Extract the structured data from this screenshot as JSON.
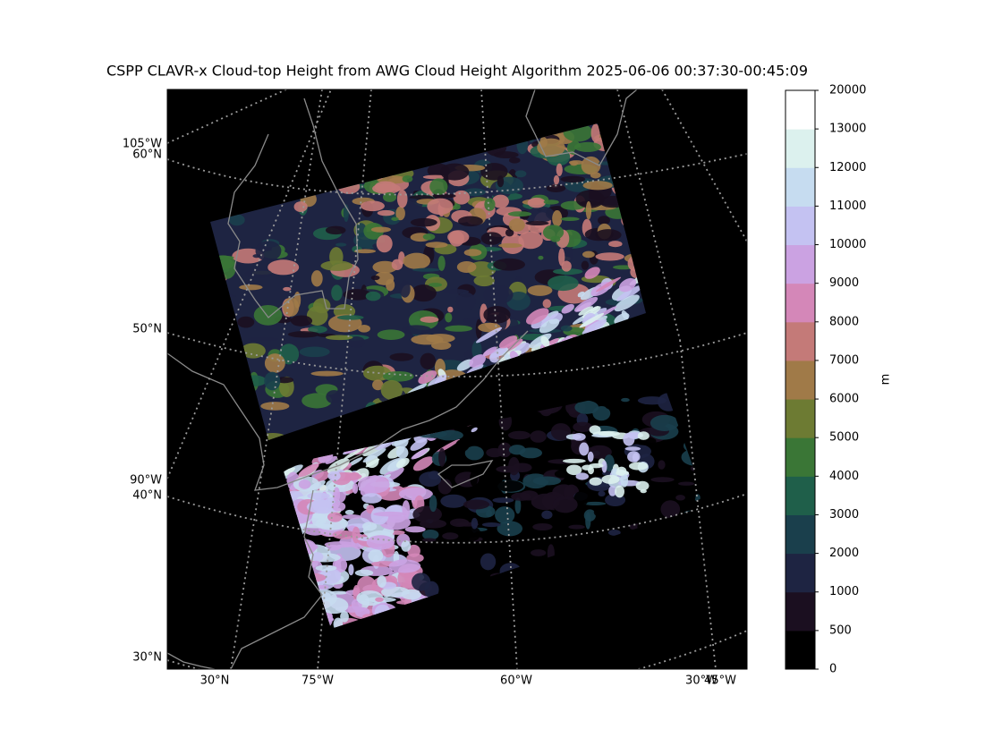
{
  "title": "CSPP CLAVR-x Cloud-top Height from AWG Cloud Height Algorithm 2025-06-06 00:37:30-00:45:09",
  "map": {
    "left_labels": [
      "105°W",
      "60°N",
      "50°N",
      "90°W",
      "40°N",
      "30°N"
    ],
    "bottom_labels": [
      "30°N",
      "75°W",
      "60°W",
      "30°W",
      "45°W"
    ]
  },
  "colorbar": {
    "label": "m",
    "levels": [
      0,
      500,
      1000,
      2000,
      3000,
      4000,
      5000,
      6000,
      7000,
      8000,
      9000,
      10000,
      11000,
      12000,
      13000,
      20000
    ],
    "colors": [
      "#000000",
      "#1b0f20",
      "#1e2442",
      "#1a3f4c",
      "#1f5f4a",
      "#3a7636",
      "#6d7b33",
      "#a07a48",
      "#c47a78",
      "#d487b8",
      "#cba2e2",
      "#c4c2f2",
      "#c6dcf0",
      "#dcf1ee",
      "#ffffff"
    ]
  }
}
